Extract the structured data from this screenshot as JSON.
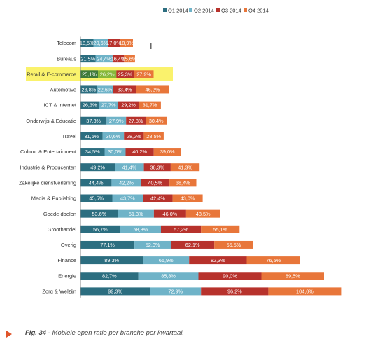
{
  "chart_data": {
    "type": "bar",
    "orientation": "horizontal",
    "stacked": true,
    "title": "",
    "xlabel": "",
    "ylabel": "",
    "grid": false,
    "legend_position": "top",
    "highlighted_category": "Retail & E-commerce",
    "highlight_color": "#faf26c",
    "categories": [
      "Telecom",
      "Bureaus",
      "Retail & E-commerce",
      "Automotive",
      "ICT & Internet",
      "Onderwijs & Educatie",
      "Travel",
      "Cultuur & Entertainment",
      "Industrie & Producenten",
      "Zakelijke dienstverlening",
      "Media & Publishing",
      "Goede doelen",
      "Groothandel",
      "Overig",
      "Finance",
      "Energie",
      "Zorg & Welzijn"
    ],
    "series": [
      {
        "name": "Q1 2014",
        "color": "#2c6e80",
        "values": [
          18.5,
          21.5,
          25.1,
          23.8,
          26.3,
          37.3,
          31.6,
          34.5,
          49.2,
          44.4,
          45.5,
          53.6,
          56.7,
          77.1,
          89.3,
          82.7,
          99.3
        ],
        "labels": [
          "18,5%",
          "21,5%",
          "25,1%",
          "23,8%",
          "26,3%",
          "37,3%",
          "31,6%",
          "34,5%",
          "49,2%",
          "44,4%",
          "45,5%",
          "53,6%",
          "56,7%",
          "77,1%",
          "89,3%",
          "82,7%",
          "99,3%"
        ]
      },
      {
        "name": "Q2 2014",
        "color": "#6fb3c8",
        "values": [
          20.6,
          24.4,
          26.2,
          22.6,
          27.7,
          27.9,
          30.6,
          30.0,
          41.4,
          42.2,
          43.7,
          51.3,
          58.3,
          52.0,
          65.9,
          85.8,
          72.9
        ],
        "labels": [
          "20,6%",
          "24,4%",
          "26,2%",
          "22,6%",
          "27,7%",
          "27,9%",
          "30,6%",
          "30,0%",
          "41,4%",
          "42,2%",
          "43,7%",
          "51,3%",
          "58,3%",
          "52,0%",
          "65,9%",
          "85,8%",
          "72,9%"
        ]
      },
      {
        "name": "Q3 2014",
        "color": "#b7322c",
        "values": [
          17.0,
          16.4,
          25.3,
          33.4,
          29.2,
          27.8,
          28.2,
          40.2,
          38.3,
          40.5,
          42.4,
          46.0,
          57.2,
          62.1,
          82.3,
          90.0,
          96.2
        ],
        "labels": [
          "17,0%",
          "16,4%",
          "25,3%",
          "33,4%",
          "29,2%",
          "27,8%",
          "28,2%",
          "40,2%",
          "38,3%",
          "40,5%",
          "42,4%",
          "46,0%",
          "57,2%",
          "62,1%",
          "82,3%",
          "90,0%",
          "96,2%"
        ]
      },
      {
        "name": "Q4 2014",
        "color": "#e8763a",
        "values": [
          18.9,
          15.6,
          27.9,
          46.2,
          31.7,
          30.4,
          28.5,
          39.0,
          41.3,
          38.4,
          43.0,
          48.5,
          55.1,
          55.5,
          76.5,
          89.5,
          104.0
        ],
        "labels": [
          "18,9%",
          "15,6%",
          "27,9%",
          "46,2%",
          "31,7%",
          "30,4%",
          "28,5%",
          "39,0%",
          "41,3%",
          "38,4%",
          "43,0%",
          "48,5%",
          "55,1%",
          "55,5%",
          "76,5%",
          "89,5%",
          "104,0%"
        ]
      }
    ],
    "highlight_series_colors": [
      "#3f7a3a",
      "#86b83a",
      "#b7322c",
      "#e8763a"
    ]
  },
  "caption": {
    "fig": "Fig. 34 -",
    "text": " Mobiele open ratio per branche per kwartaal."
  },
  "colors": {
    "arrow": "#e0542a"
  }
}
